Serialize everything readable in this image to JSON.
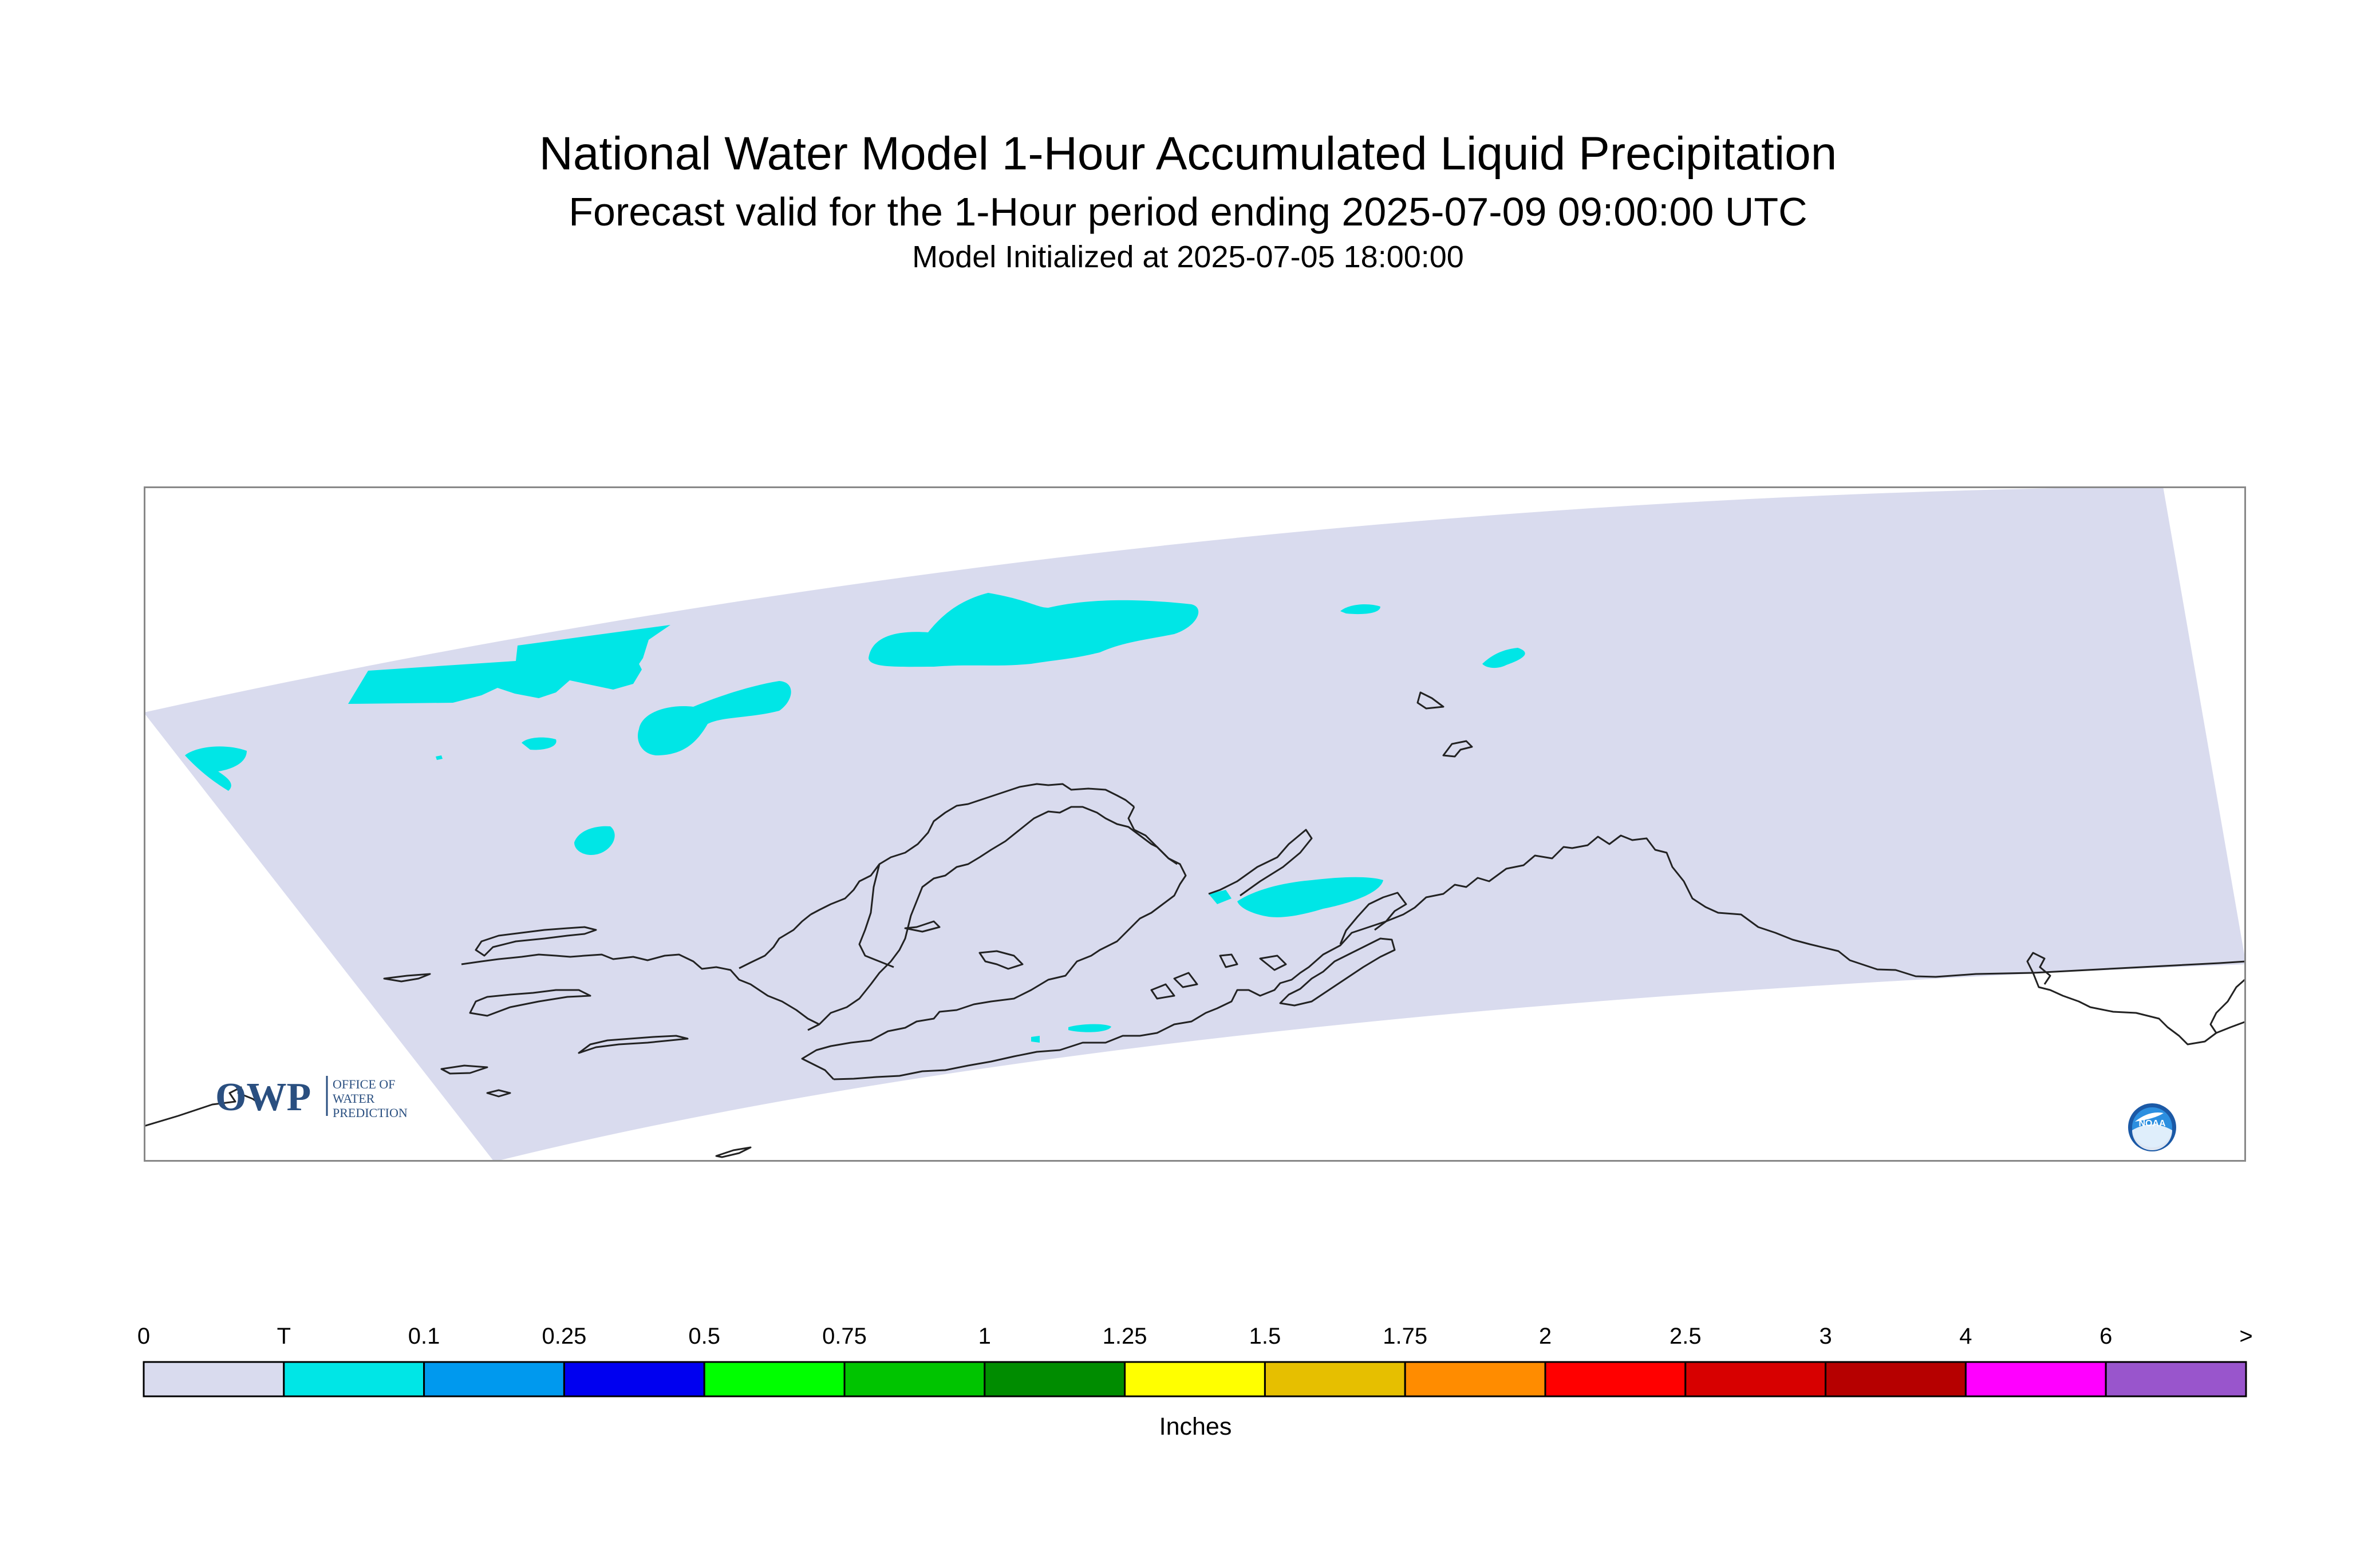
{
  "header": {
    "title": "National Water Model 1-Hour Accumulated Liquid Precipitation",
    "subtitle": "Forecast valid for the 1-Hour period ending 2025-07-09 09:00:00 UTC",
    "init": "Model Initialized at 2025-07-05 18:00:00"
  },
  "map": {
    "domain_fill": "#d9dbee",
    "precip_color": "#00e6e6",
    "coastline_color": "#222222",
    "frame_color": "#888888"
  },
  "logos": {
    "owp": {
      "mark": "OWP",
      "line1": "OFFICE OF",
      "line2": "WATER",
      "line3": "PREDICTION",
      "icon": "owp-logo"
    },
    "noaa": {
      "text": "NOAA",
      "icon": "noaa-logo"
    }
  },
  "legend": {
    "unit": "Inches",
    "labels": [
      "0",
      "T",
      "0.1",
      "0.25",
      "0.5",
      "0.75",
      "1",
      "1.25",
      "1.5",
      "1.75",
      "2",
      "2.5",
      "3",
      "4",
      "6",
      ">"
    ],
    "colors": [
      "#d9dbee",
      "#00e6e6",
      "#0099ee",
      "#0000f0",
      "#00ff00",
      "#00c400",
      "#008c00",
      "#ffff00",
      "#e6bf00",
      "#ff8c00",
      "#ff0000",
      "#d70000",
      "#b60000",
      "#ff00ff",
      "#9955cc"
    ]
  }
}
